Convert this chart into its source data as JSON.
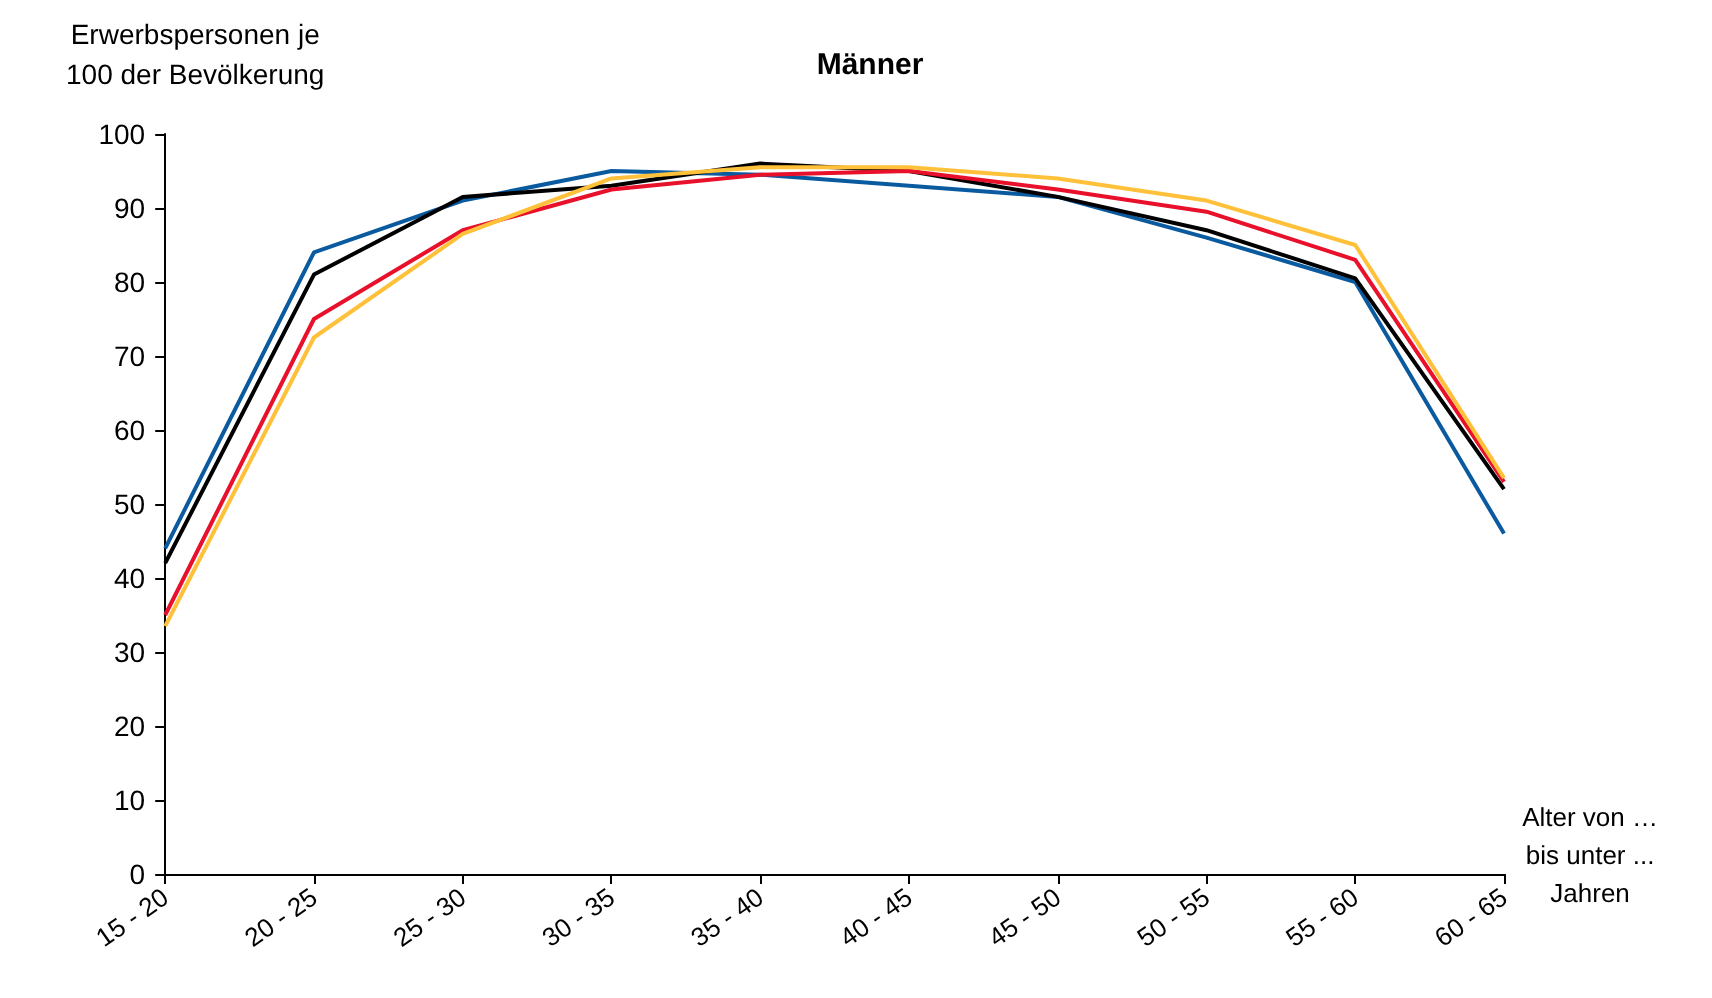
{
  "chart_data": {
    "type": "line",
    "title": "Männer",
    "ylabel": "Erwerbspersonen je\n100 der Bevölkerung",
    "xlabel": "Alter von …\nbis unter ...\nJahren",
    "categories": [
      "15 - 20",
      "20 - 25",
      "25 - 30",
      "30 - 35",
      "35 - 40",
      "40 - 45",
      "45 - 50",
      "50 - 55",
      "55 - 60",
      "60 - 65"
    ],
    "series": [
      {
        "color": "#0a5aa0",
        "values": [
          44,
          84,
          91,
          95,
          94.5,
          93,
          91.5,
          86,
          80,
          46
        ]
      },
      {
        "color": "#000000",
        "values": [
          42,
          81,
          91.5,
          93,
          96,
          95,
          91.5,
          87,
          80.5,
          52
        ]
      },
      {
        "color": "#e8102a",
        "values": [
          35,
          75,
          87,
          92.5,
          94.5,
          95,
          92.5,
          89.5,
          83,
          53
        ]
      },
      {
        "color": "#ffc03a",
        "values": [
          33.5,
          72.5,
          86.5,
          94,
          95.5,
          95.5,
          94,
          91,
          85,
          53.5
        ]
      }
    ],
    "ylim": [
      0,
      100
    ],
    "yticks": [
      0,
      10,
      20,
      30,
      40,
      50,
      60,
      70,
      80,
      90,
      100
    ],
    "grid": false,
    "marker": "none",
    "line_style": "solid"
  }
}
